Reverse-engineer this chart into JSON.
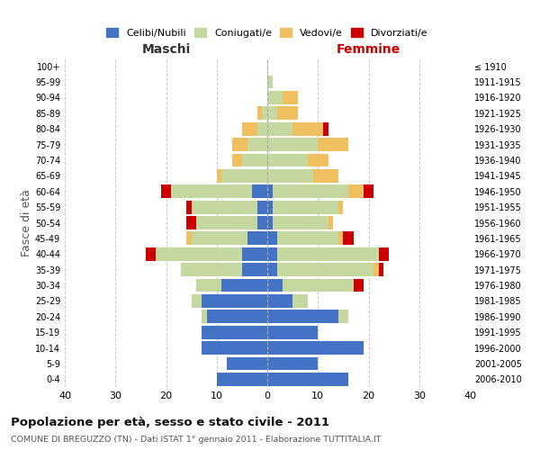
{
  "age_groups": [
    "0-4",
    "5-9",
    "10-14",
    "15-19",
    "20-24",
    "25-29",
    "30-34",
    "35-39",
    "40-44",
    "45-49",
    "50-54",
    "55-59",
    "60-64",
    "65-69",
    "70-74",
    "75-79",
    "80-84",
    "85-89",
    "90-94",
    "95-99",
    "100+"
  ],
  "birth_years": [
    "2006-2010",
    "2001-2005",
    "1996-2000",
    "1991-1995",
    "1986-1990",
    "1981-1985",
    "1976-1980",
    "1971-1975",
    "1966-1970",
    "1961-1965",
    "1956-1960",
    "1951-1955",
    "1946-1950",
    "1941-1945",
    "1936-1940",
    "1931-1935",
    "1926-1930",
    "1921-1925",
    "1916-1920",
    "1911-1915",
    "≤ 1910"
  ],
  "male": {
    "celibi": [
      10,
      8,
      13,
      13,
      12,
      13,
      9,
      5,
      5,
      4,
      2,
      2,
      3,
      0,
      0,
      0,
      0,
      0,
      0,
      0,
      0
    ],
    "coniugati": [
      0,
      0,
      0,
      0,
      1,
      2,
      5,
      12,
      17,
      11,
      12,
      13,
      16,
      9,
      5,
      4,
      2,
      1,
      0,
      0,
      0
    ],
    "vedovi": [
      0,
      0,
      0,
      0,
      0,
      0,
      0,
      0,
      0,
      1,
      0,
      0,
      0,
      1,
      2,
      3,
      3,
      1,
      0,
      0,
      0
    ],
    "divorziati": [
      0,
      0,
      0,
      0,
      0,
      0,
      0,
      0,
      2,
      0,
      2,
      1,
      2,
      0,
      0,
      0,
      0,
      0,
      0,
      0,
      0
    ]
  },
  "female": {
    "nubili": [
      16,
      10,
      19,
      10,
      14,
      5,
      3,
      2,
      2,
      2,
      1,
      1,
      1,
      0,
      0,
      0,
      0,
      0,
      0,
      0,
      0
    ],
    "coniugate": [
      0,
      0,
      0,
      0,
      2,
      3,
      14,
      19,
      20,
      12,
      11,
      13,
      15,
      9,
      8,
      10,
      5,
      2,
      3,
      1,
      0
    ],
    "vedove": [
      0,
      0,
      0,
      0,
      0,
      0,
      0,
      1,
      0,
      1,
      1,
      1,
      3,
      5,
      4,
      6,
      6,
      4,
      3,
      0,
      0
    ],
    "divorziate": [
      0,
      0,
      0,
      0,
      0,
      0,
      2,
      1,
      2,
      2,
      0,
      0,
      2,
      0,
      0,
      0,
      1,
      0,
      0,
      0,
      0
    ]
  },
  "colors": {
    "celibi_nubili": "#4472c4",
    "coniugati": "#c5d8a0",
    "vedovi": "#f0c060",
    "divorziati": "#cc0000"
  },
  "xlim": 40,
  "title": "Popolazione per età, sesso e stato civile - 2011",
  "subtitle": "COMUNE DI BREGUZZO (TN) - Dati ISTAT 1° gennaio 2011 - Elaborazione TUTTITALIA.IT",
  "ylabel_left": "Fasce di età",
  "xlabel_left": "Maschi",
  "xlabel_right": "Femmine",
  "background_color": "#ffffff",
  "grid_color": "#cccccc"
}
